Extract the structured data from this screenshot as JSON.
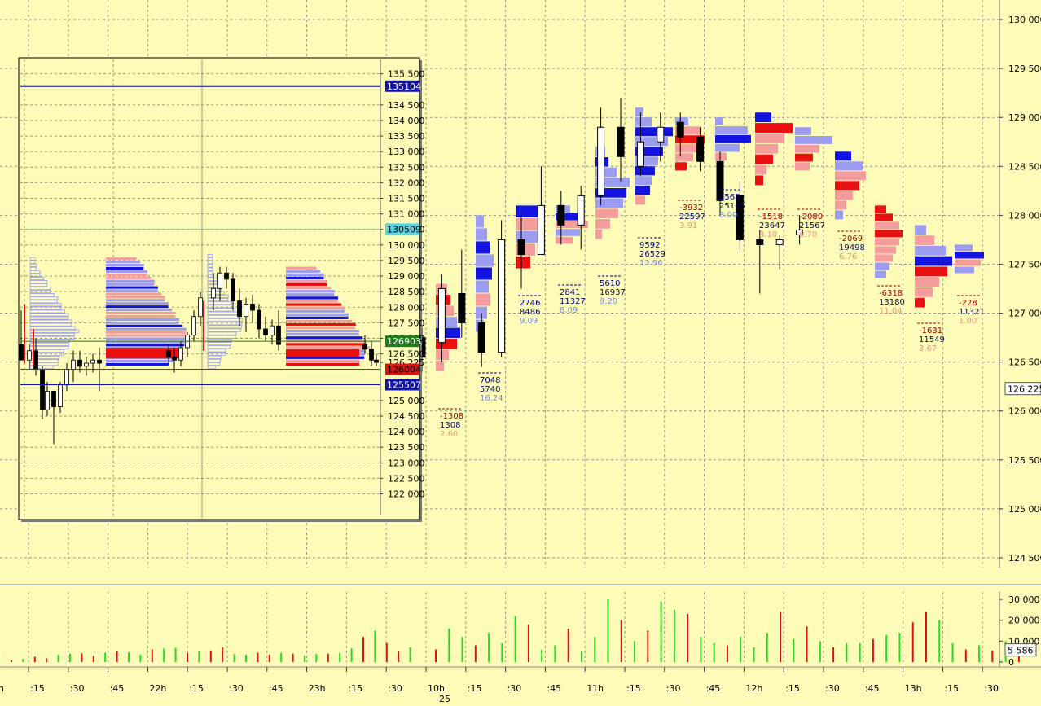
{
  "chart_data": {
    "type": "candlestick-footprint",
    "colors": {
      "background": "#FCFCB8",
      "grid": "#9A9A7C",
      "bull_strong": "#1414E0",
      "bull_light": "#9C9CF0",
      "bear_strong": "#E81010",
      "bear_light": "#F59C9C",
      "volume_up": "#22DD22",
      "volume_down": "#DD1111",
      "delta_pos": "#000088",
      "delta_neg": "#AA0000"
    },
    "y_axis": {
      "min": 124400,
      "max": 130200,
      "ticks": [
        "130 000",
        "129 500",
        "129 000",
        "128 500",
        "128 000",
        "127 500",
        "127 000",
        "126 500",
        "126 000",
        "125 500",
        "125 000",
        "124 500"
      ],
      "current_price_label": "126 225"
    },
    "x_axis": {
      "labels": [
        ":15",
        ":30",
        ":45",
        "22h",
        ":15",
        ":30",
        ":45",
        "23h",
        ":15",
        ":30",
        "10h",
        ":15",
        ":30",
        ":45",
        "11h",
        ":15",
        ":30",
        ":45",
        "12h",
        ":15",
        ":30",
        ":45",
        "13h",
        ":15",
        ":30"
      ],
      "partial_left_label": "h",
      "date_label": "25"
    },
    "volume_axis": {
      "max": 30000,
      "ticks": [
        "30 000",
        "20 000",
        "10 000",
        "0"
      ],
      "current_label": "5 586"
    },
    "inset": {
      "y_min": 121700,
      "y_max": 135700,
      "ticks": [
        "135 500",
        "134 500",
        "134 000",
        "133 500",
        "133 000",
        "132 500",
        "132 000",
        "131 500",
        "131 000",
        "130 500",
        "130 000",
        "129 500",
        "129 000",
        "128 500",
        "128 000",
        "127 500",
        "127 000",
        "126 500",
        "126 225",
        "125 000",
        "124 500",
        "124 000",
        "123 500",
        "123 000",
        "122 500",
        "122 000"
      ],
      "level_lines": [
        {
          "label": "135104",
          "value": 135104,
          "color": "#1414AA",
          "text_color": "#FFFFFF"
        },
        {
          "label": "130509",
          "value": 130509,
          "color": "#55D6E6",
          "text_color": "#000000"
        },
        {
          "label": "126903",
          "value": 126903,
          "color": "#1E7E1E",
          "text_color": "#FFFFFF"
        },
        {
          "label": "126004",
          "value": 126004,
          "color": "#DD1111",
          "text_color": "#000000"
        },
        {
          "label": "125507",
          "value": 125507,
          "color": "#1414AA",
          "text_color": "#FFFFFF"
        }
      ]
    },
    "bar_stats": [
      {
        "delta": "-1308",
        "total": "1308",
        "ratio": "2.60"
      },
      {
        "delta": "7048",
        "total": "5740",
        "ratio": "16.24"
      },
      {
        "delta": "2746",
        "total": "8486",
        "ratio": "9.09"
      },
      {
        "delta": "2841",
        "total": "11327",
        "ratio": "8.09"
      },
      {
        "delta": "5610",
        "total": "16937",
        "ratio": "9.20"
      },
      {
        "delta": "9592",
        "total": "26529",
        "ratio": "13.96"
      },
      {
        "delta": "-3932",
        "total": "22597",
        "ratio": "3.91"
      },
      {
        "delta": "2568",
        "total": "25165",
        "ratio": "8.00"
      },
      {
        "delta": "-1518",
        "total": "23647",
        "ratio": "3.10"
      },
      {
        "delta": "-2080",
        "total": "21567",
        "ratio": "6.70"
      },
      {
        "delta": "-2069",
        "total": "19498",
        "ratio": "6.76"
      },
      {
        "delta": "-6318",
        "total": "13180",
        "ratio": "11.04"
      },
      {
        "delta": "-1631",
        "total": "11549",
        "ratio": "3.67"
      },
      {
        "delta": "-228",
        "total": "11321",
        "ratio": "1.00"
      }
    ],
    "candles": [
      {
        "o": 126750,
        "h": 126850,
        "l": 126400,
        "c": 126550
      },
      {
        "o": 126700,
        "h": 127400,
        "l": 126500,
        "c": 127250
      },
      {
        "o": 127200,
        "h": 127650,
        "l": 126750,
        "c": 126900
      },
      {
        "o": 126900,
        "h": 127000,
        "l": 126450,
        "c": 126600
      },
      {
        "o": 126600,
        "h": 127950,
        "l": 126550,
        "c": 127750
      },
      {
        "o": 127750,
        "h": 128000,
        "l": 127250,
        "c": 127600
      },
      {
        "o": 127600,
        "h": 128500,
        "l": 127600,
        "c": 128100
      },
      {
        "o": 128100,
        "h": 128250,
        "l": 127700,
        "c": 127900
      },
      {
        "o": 127900,
        "h": 128300,
        "l": 127650,
        "c": 128200
      },
      {
        "o": 128200,
        "h": 129100,
        "l": 128100,
        "c": 128900
      },
      {
        "o": 128900,
        "h": 129200,
        "l": 128350,
        "c": 128600
      },
      {
        "o": 128500,
        "h": 129050,
        "l": 128400,
        "c": 128750
      },
      {
        "o": 128750,
        "h": 129050,
        "l": 128550,
        "c": 128900
      },
      {
        "o": 128950,
        "h": 129050,
        "l": 128600,
        "c": 128800
      },
      {
        "o": 128800,
        "h": 128900,
        "l": 128450,
        "c": 128550
      },
      {
        "o": 128550,
        "h": 128650,
        "l": 128000,
        "c": 128150
      },
      {
        "o": 128200,
        "h": 128350,
        "l": 127650,
        "c": 127750
      },
      {
        "o": 127750,
        "h": 127850,
        "l": 127200,
        "c": 127700
      },
      {
        "o": 127700,
        "h": 127800,
        "l": 127450,
        "c": 127750
      },
      {
        "o": 127800,
        "h": 128000,
        "l": 127700,
        "c": 127850
      }
    ],
    "volumes_right": [
      6000,
      16000,
      12000,
      8000,
      14000,
      9000,
      22000,
      18000,
      6000,
      8000,
      16000,
      5000,
      12000,
      30000,
      20000,
      10000,
      15000,
      29000,
      25000,
      23000,
      12000,
      9000,
      8000,
      12000,
      7000,
      14000,
      24000,
      11000,
      17000,
      10000,
      7000,
      9000,
      9000,
      11000,
      13000,
      14000,
      19000,
      24000,
      20000,
      9000,
      6000,
      8000,
      5500,
      10000,
      5586
    ],
    "volumes_left": [
      800,
      1500,
      2500,
      1800,
      3500,
      4000,
      4200,
      3000,
      4500,
      5000,
      4700,
      3500,
      6000,
      6500,
      6800,
      4500,
      5000,
      5200,
      7000,
      3800,
      3500,
      4500,
      3600,
      4400,
      4000,
      3200,
      3800,
      4000,
      4500,
      6500,
      12000,
      15000,
      9000,
      5000,
      7000
    ]
  }
}
